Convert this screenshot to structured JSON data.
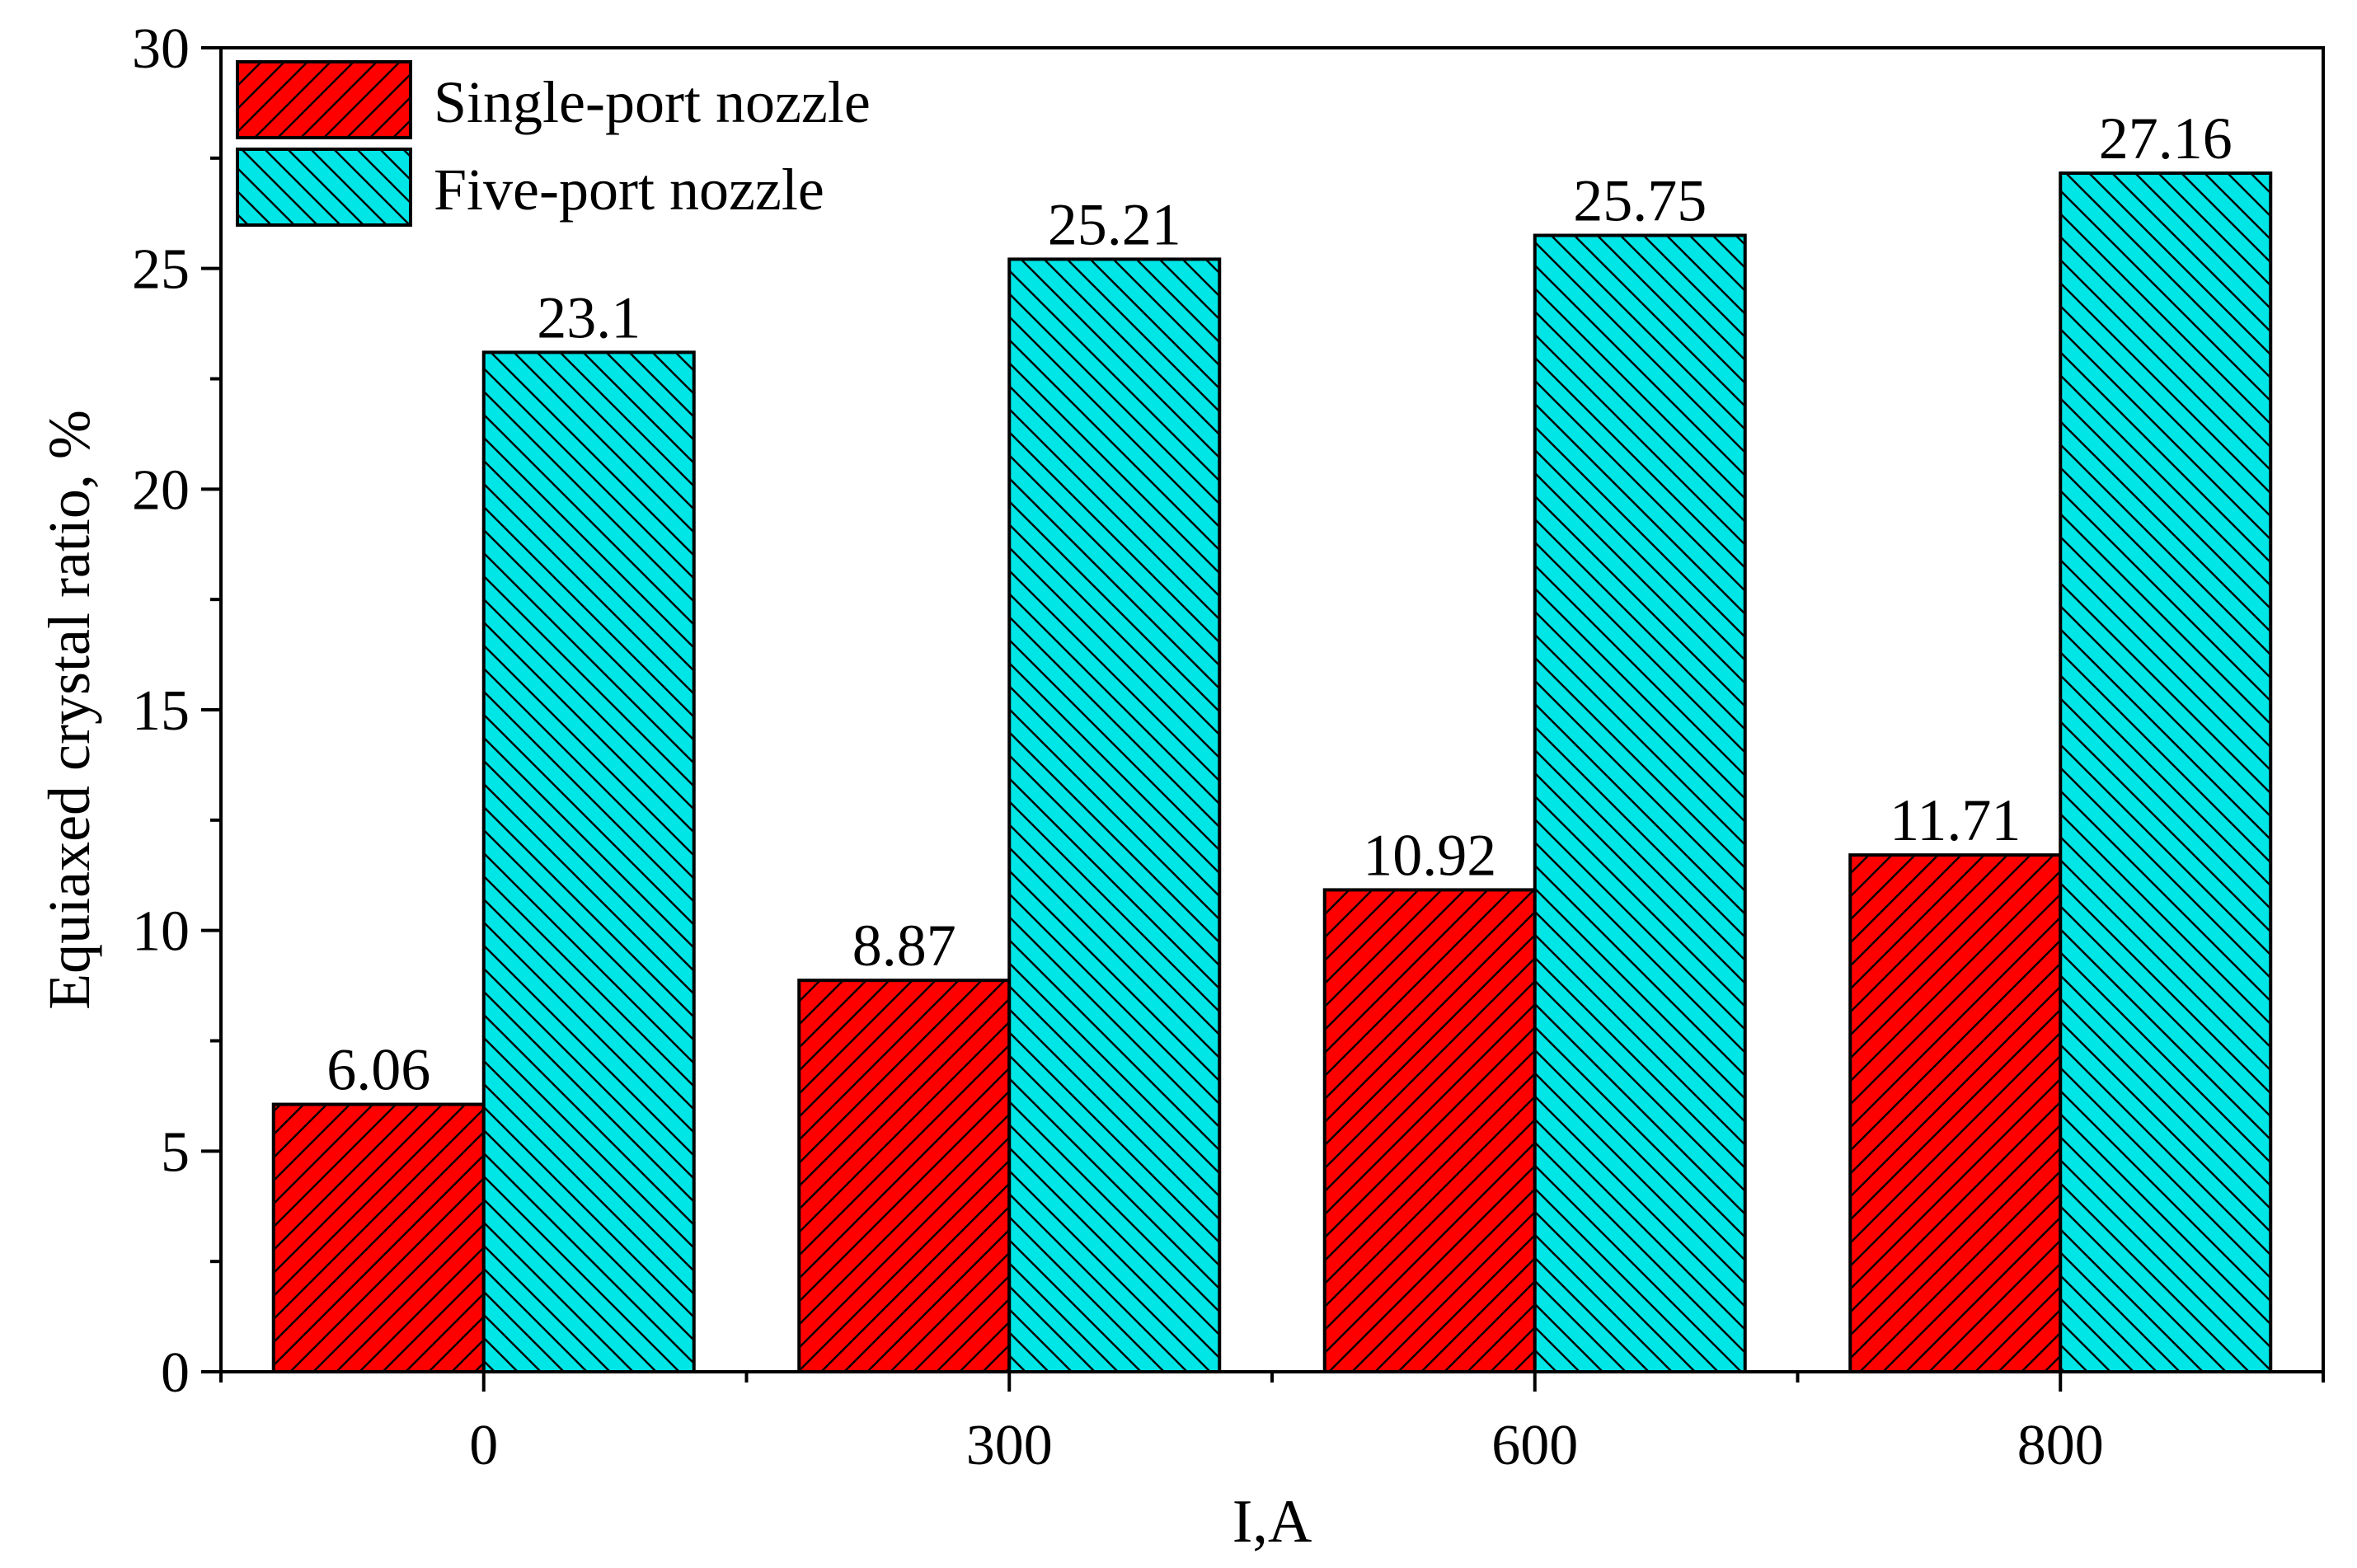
{
  "chart_data": {
    "type": "bar",
    "categories": [
      "0",
      "300",
      "600",
      "800"
    ],
    "series": [
      {
        "name": "Single-port nozzle",
        "values": [
          6.06,
          8.87,
          10.92,
          11.71
        ],
        "color": "#ff0000",
        "hatch": "forward-diagonal"
      },
      {
        "name": "Five-port nozzle",
        "values": [
          23.1,
          25.21,
          25.75,
          27.16
        ],
        "color": "#00e5e5",
        "hatch": "back-diagonal"
      }
    ],
    "value_labels": [
      [
        "6.06",
        "8.87",
        "10.92",
        "11.71"
      ],
      [
        "23.1",
        "25.21",
        "25.75",
        "27.16"
      ]
    ],
    "xlabel": "I,A",
    "ylabel": "Equiaxed crystal ratio,  %",
    "ylim": [
      0,
      30
    ],
    "yticks": [
      "0",
      "5",
      "10",
      "15",
      "20",
      "25",
      "30"
    ],
    "legend_position": "top-left",
    "grid": false
  }
}
